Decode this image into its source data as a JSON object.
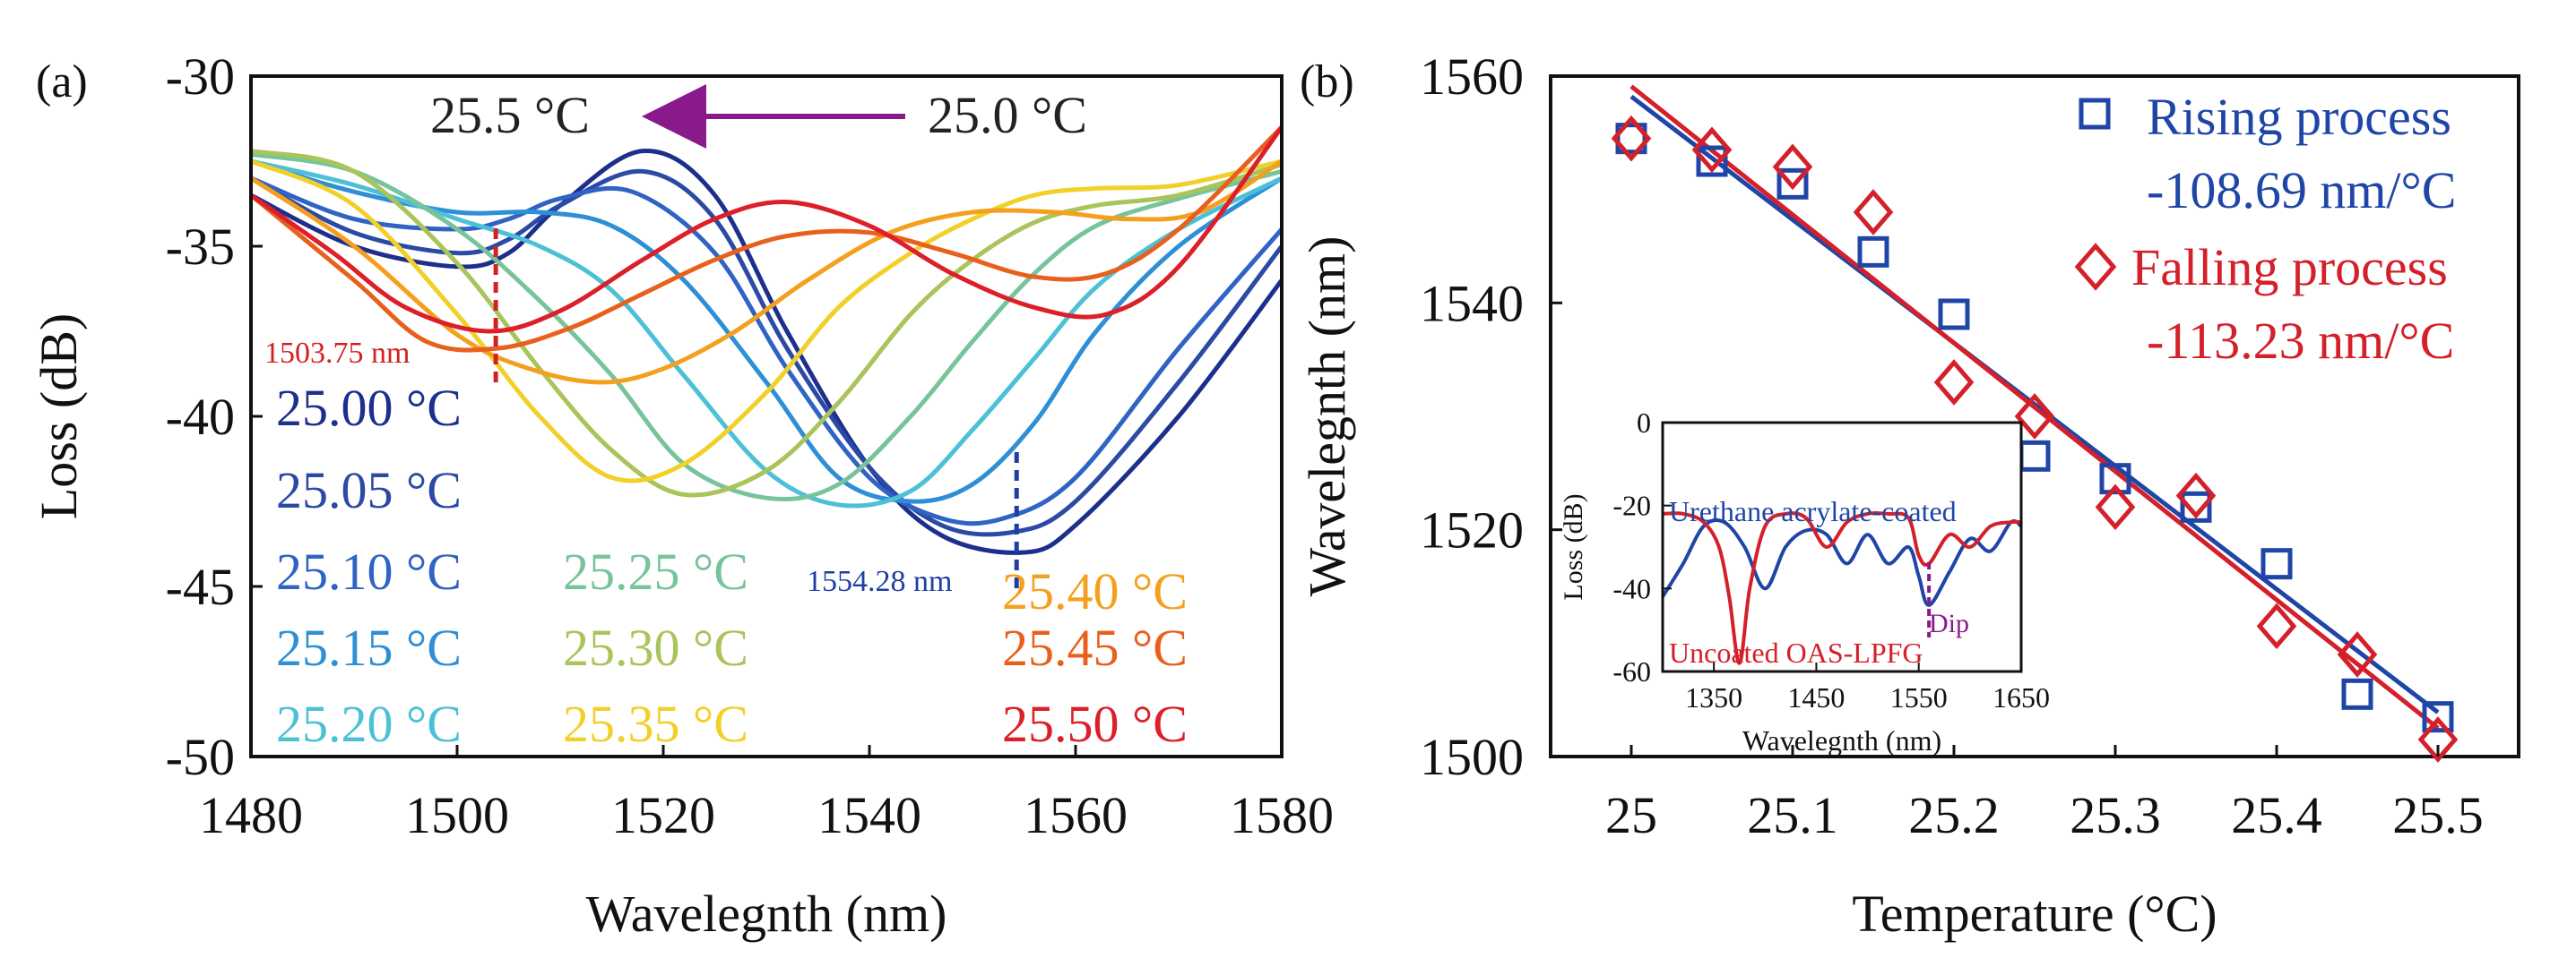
{
  "chart_data": [
    {
      "type": "line",
      "panel_label": "(a)",
      "xlabel": "Wavelegnth (nm)",
      "ylabel": "Loss (dB)",
      "xlim": [
        1480,
        1580
      ],
      "ylim": [
        -50,
        -30
      ],
      "xticks": [
        "1480",
        "1500",
        "1520",
        "1540",
        "1560",
        "1580"
      ],
      "yticks": [
        "-30",
        "-35",
        "-40",
        "-45",
        "-50"
      ],
      "arrow_from": "25.0 °C",
      "arrow_to": "25.5 °C",
      "annotations": [
        {
          "text": "1503.75 nm",
          "x": 1503.75,
          "color": "#d42020"
        },
        {
          "text": "1554.28 nm",
          "x": 1554.28,
          "color": "#1f3fa0"
        }
      ],
      "series": [
        {
          "name": "25.00 °C",
          "color": "#1c2f8c",
          "x": [
            1480,
            1490,
            1500,
            1505,
            1510,
            1518,
            1525,
            1532,
            1540,
            1547,
            1555,
            1560,
            1570,
            1580
          ],
          "y": [
            -33.5,
            -35,
            -35.6,
            -35.2,
            -33.8,
            -32.2,
            -33.5,
            -37.5,
            -41.5,
            -43.5,
            -44.0,
            -43.2,
            -40.0,
            -36.0
          ]
        },
        {
          "name": "25.05 °C",
          "color": "#2a4aa6",
          "x": [
            1480,
            1490,
            1500,
            1505,
            1510,
            1518,
            1525,
            1532,
            1540,
            1547,
            1554,
            1560,
            1570,
            1580
          ],
          "y": [
            -33.0,
            -34.6,
            -35.2,
            -34.8,
            -33.8,
            -32.8,
            -34.2,
            -38.0,
            -41.5,
            -43.2,
            -43.4,
            -42.5,
            -39.0,
            -35.0
          ]
        },
        {
          "name": "25.10 °C",
          "color": "#2f63c4",
          "x": [
            1480,
            1490,
            1500,
            1505,
            1510,
            1517,
            1525,
            1532,
            1540,
            1547,
            1553,
            1560,
            1570,
            1580
          ],
          "y": [
            -33.0,
            -34.2,
            -34.5,
            -34.2,
            -33.6,
            -33.4,
            -35.2,
            -38.6,
            -41.8,
            -43.0,
            -43.0,
            -41.8,
            -38.0,
            -34.5
          ]
        },
        {
          "name": "25.15 °C",
          "color": "#2e8fd6",
          "x": [
            1480,
            1490,
            1500,
            1508,
            1515,
            1522,
            1530,
            1537,
            1544,
            1550,
            1556,
            1562,
            1570,
            1580
          ],
          "y": [
            -32.5,
            -33.4,
            -34.0,
            -34.0,
            -34.4,
            -36.0,
            -39.0,
            -41.8,
            -42.5,
            -42.0,
            -40.2,
            -37.5,
            -35.0,
            -33.0
          ]
        },
        {
          "name": "25.20 °C",
          "color": "#4cc0d6",
          "x": [
            1480,
            1490,
            1500,
            1508,
            1515,
            1522,
            1530,
            1537,
            1544,
            1550,
            1556,
            1562,
            1570,
            1580
          ],
          "y": [
            -32.5,
            -33.2,
            -34.2,
            -35.0,
            -36.3,
            -38.8,
            -41.6,
            -42.6,
            -42.2,
            -40.4,
            -38.3,
            -36.2,
            -34.5,
            -33.0
          ]
        },
        {
          "name": "25.25 °C",
          "color": "#78c49a",
          "x": [
            1480,
            1490,
            1500,
            1508,
            1515,
            1522,
            1530,
            1537,
            1544,
            1550,
            1556,
            1562,
            1570,
            1580
          ],
          "y": [
            -32.3,
            -32.8,
            -34.5,
            -36.6,
            -38.8,
            -41.4,
            -42.4,
            -42.0,
            -40.0,
            -37.8,
            -35.8,
            -34.4,
            -33.6,
            -32.8
          ]
        },
        {
          "name": "25.30 °C",
          "color": "#a9c45a",
          "x": [
            1480,
            1490,
            1500,
            1508,
            1515,
            1522,
            1530,
            1537,
            1544,
            1550,
            1556,
            1562,
            1570,
            1580
          ],
          "y": [
            -32.2,
            -32.8,
            -35.5,
            -38.6,
            -41.0,
            -42.3,
            -41.6,
            -39.6,
            -37.0,
            -35.4,
            -34.3,
            -33.8,
            -33.5,
            -32.6
          ]
        },
        {
          "name": "25.35 °C",
          "color": "#f2d02a",
          "x": [
            1480,
            1490,
            1500,
            1508,
            1515,
            1522,
            1530,
            1537,
            1544,
            1550,
            1556,
            1562,
            1570,
            1580
          ],
          "y": [
            -32.5,
            -33.8,
            -37.0,
            -40.0,
            -41.8,
            -41.4,
            -39.3,
            -36.8,
            -35.2,
            -34.2,
            -33.5,
            -33.3,
            -33.2,
            -32.5
          ]
        },
        {
          "name": "25.40 °C",
          "color": "#f4a01e",
          "x": [
            1480,
            1490,
            1500,
            1507,
            1514,
            1520,
            1527,
            1534,
            1542,
            1550,
            1558,
            1565,
            1572,
            1580
          ],
          "y": [
            -33.0,
            -35.0,
            -37.6,
            -38.6,
            -39.0,
            -38.6,
            -37.5,
            -36.0,
            -34.6,
            -34.0,
            -34.0,
            -34.2,
            -34.0,
            -32.5
          ]
        },
        {
          "name": "25.45 °C",
          "color": "#e9601c",
          "x": [
            1480,
            1490,
            1497,
            1504,
            1511,
            1518,
            1525,
            1532,
            1540,
            1548,
            1556,
            1563,
            1570,
            1580
          ],
          "y": [
            -33.5,
            -36.0,
            -37.8,
            -38.0,
            -37.4,
            -36.4,
            -35.4,
            -34.7,
            -34.6,
            -35.2,
            -35.9,
            -35.8,
            -34.5,
            -31.5
          ]
        },
        {
          "name": "25.50 °C",
          "color": "#dc1f28",
          "x": [
            1480,
            1488,
            1495,
            1503,
            1510,
            1518,
            1525,
            1532,
            1540,
            1548,
            1556,
            1563,
            1570,
            1580
          ],
          "y": [
            -33.5,
            -35.2,
            -36.8,
            -37.5,
            -36.9,
            -35.4,
            -34.2,
            -33.7,
            -34.4,
            -35.8,
            -36.8,
            -37.0,
            -35.6,
            -31.5
          ]
        }
      ]
    },
    {
      "type": "scatter",
      "panel_label": "(b)",
      "xlabel": "Temperature (°C)",
      "ylabel": "Wavelegnth (nm)",
      "xlim": [
        24.95,
        25.55
      ],
      "ylim": [
        1500,
        1560
      ],
      "xticks": [
        "25",
        "25.1",
        "25.2",
        "25.3",
        "25.4",
        "25.5"
      ],
      "yticks": [
        "1560",
        "1540",
        "1520",
        "1500"
      ],
      "series": [
        {
          "name": "Rising process",
          "slope_label": "-108.69 nm/°C",
          "marker": "square",
          "color": "#1f46a6",
          "x": [
            25.0,
            25.05,
            25.1,
            25.15,
            25.2,
            25.25,
            25.3,
            25.35,
            25.4,
            25.45,
            25.5
          ],
          "y": [
            1554.5,
            1552.5,
            1550.5,
            1544.5,
            1539.0,
            1526.5,
            1524.5,
            1522.0,
            1517.0,
            1505.5,
            1503.5
          ],
          "fit": {
            "x": [
              25.0,
              25.5
            ],
            "y": [
              1558.2,
              1503.9
            ]
          }
        },
        {
          "name": "Falling process",
          "slope_label": "-113.23 nm/°C",
          "marker": "diamond",
          "color": "#d4202a",
          "x": [
            25.0,
            25.05,
            25.1,
            25.15,
            25.2,
            25.25,
            25.3,
            25.35,
            25.4,
            25.45,
            25.5
          ],
          "y": [
            1554.5,
            1553.5,
            1552.0,
            1548.0,
            1533.0,
            1530.0,
            1522.0,
            1523.0,
            1511.5,
            1509.0,
            1501.5
          ],
          "fit": {
            "x": [
              25.0,
              25.5
            ],
            "y": [
              1559.1,
              1502.5
            ]
          }
        }
      ],
      "inset": {
        "xlabel": "Wavelegnth (nm)",
        "ylabel": "Loss (dB)",
        "xlim": [
          1300,
          1650
        ],
        "ylim": [
          -60,
          0
        ],
        "xticks": [
          "1350",
          "1450",
          "1550",
          "1650"
        ],
        "yticks": [
          "0",
          "-20",
          "-40",
          "-60"
        ],
        "annotation": "Dip",
        "series": [
          {
            "name": "Urethane acrylate-coated",
            "color": "#1f46a6",
            "x": [
              1300,
              1320,
              1340,
              1360,
              1380,
              1400,
              1420,
              1440,
              1460,
              1480,
              1500,
              1520,
              1540,
              1550,
              1560,
              1580,
              1600,
              1620,
              1640,
              1650
            ],
            "y": [
              -42,
              -34,
              -25,
              -24,
              -30,
              -40,
              -30,
              -26,
              -27,
              -34,
              -27,
              -34,
              -30,
              -37,
              -44,
              -36,
              -28,
              -31,
              -24,
              -25
            ]
          },
          {
            "name": "Uncoated OAS-LPFG",
            "color": "#d4202a",
            "x": [
              1300,
              1320,
              1340,
              1355,
              1365,
              1375,
              1385,
              1400,
              1420,
              1440,
              1460,
              1480,
              1500,
              1520,
              1540,
              1550,
              1560,
              1580,
              1600,
              1620,
              1640,
              1650
            ],
            "y": [
              -22,
              -22,
              -24,
              -30,
              -42,
              -58,
              -40,
              -25,
              -22,
              -23,
              -30,
              -24,
              -22,
              -22,
              -23,
              -32,
              -34,
              -27,
              -30,
              -25,
              -24,
              -24
            ]
          }
        ]
      }
    }
  ]
}
